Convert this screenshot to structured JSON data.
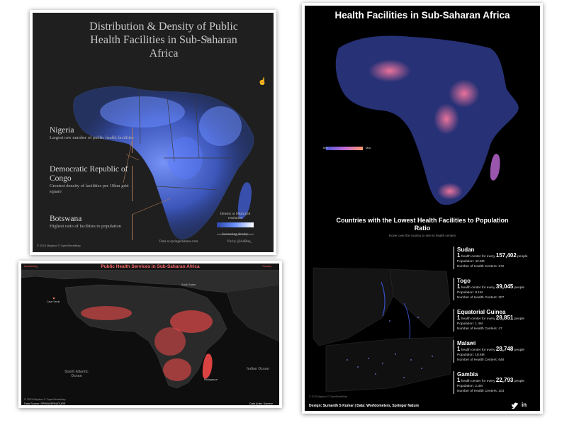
{
  "panel1": {
    "title": "Distribution & Density of Public Health Facilities in Sub-Saharan Africa",
    "annotations": [
      {
        "name": "Nigeria",
        "desc": "Largest raw number of public health facilities"
      },
      {
        "name": "Democratic Republic of Congo",
        "desc": "Greatest density of facilities per 10km grid square"
      },
      {
        "name": "Botswana",
        "desc": "Highest ratio of facilities to population"
      }
    ],
    "legend_title": "Density at 10km grid resolution",
    "legend_note": "Increasing density",
    "data_credit": "Data at springernature.com",
    "viz_credit": "Viz by @AdBop_",
    "copyright": "© 2023 Mapbox © OpenStreetMap"
  },
  "panel2": {
    "title": "Health Facilities in Sub-Saharan Africa",
    "legend_min": "Min",
    "legend_max": "Max",
    "subtitle": "Countries with the Lowest Health Facilities to Population Ratio",
    "hover_note": "Hover over the country to see its health centers",
    "countries": [
      {
        "name": "Sudan",
        "count": "1",
        "prefix": "health center for every",
        "people": "157,402",
        "suffix": "people",
        "population": "Population: 42.8M",
        "centers": "Number of Health Centers: 272"
      },
      {
        "name": "Togo",
        "count": "1",
        "prefix": "health center for every",
        "people": "39,045",
        "suffix": "people",
        "population": "Population: 8.1M",
        "centers": "Number of Health Centers: 207"
      },
      {
        "name": "Equatorial Guinea",
        "count": "1",
        "prefix": "health center for every",
        "people": "28,851",
        "suffix": "people",
        "population": "Population: 1.4M",
        "centers": "Number of Health Centers: 47"
      },
      {
        "name": "Malawi",
        "count": "1",
        "prefix": "health center for every",
        "people": "28,748",
        "suffix": "people",
        "population": "Population: 18.6M",
        "centers": "Number of Health Centers: 648"
      },
      {
        "name": "Gambia",
        "count": "1",
        "prefix": "health center for every",
        "people": "22,793",
        "suffix": "people",
        "population": "Population: 2.3M",
        "centers": "Number of Health Centers: 103"
      }
    ],
    "credit": "Design: Sumanth S Kumar | Data: Worldometers, Springer Nature",
    "copyright": "© 2023 Mapbox © OpenStreetMap"
  },
  "panel3": {
    "title": "Public Health Services in Sub-Saharan Africa",
    "top_left": "Numbering",
    "top_right": "Country",
    "ocean1": "South Atlantic Ocean",
    "ocean2": "Indian Ocean",
    "source": "Data Source: SPRINGERNATURE",
    "artist": "Data Artist: Sameer Nikam",
    "copyright": "© 2023 Mapbox © OpenStreetMap",
    "labels": [
      "South Sudan",
      "Madagascar",
      "Cape Verde"
    ]
  },
  "colors": {
    "panel1_dots": "#5b7cff",
    "panel2_dots_low": "#4b5bd6",
    "panel2_dots_high": "#ff6a8f",
    "panel3_dots": "#ff4b4b"
  }
}
